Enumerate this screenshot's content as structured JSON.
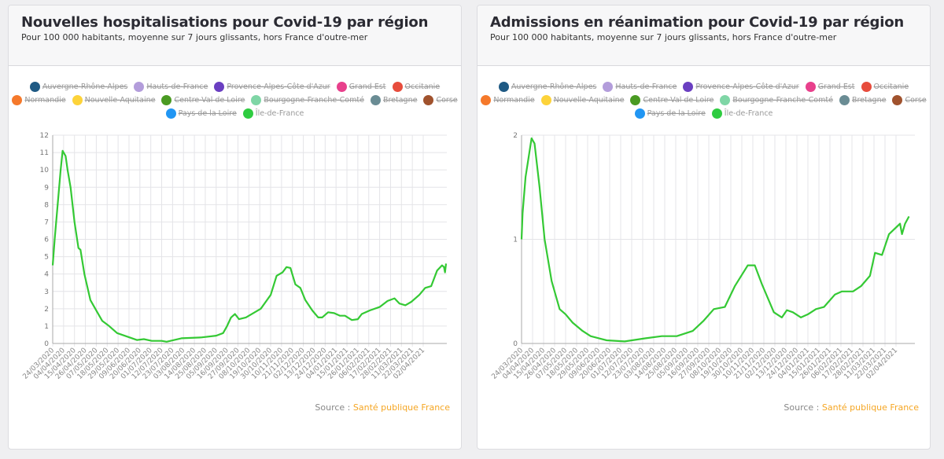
{
  "cards": [
    {
      "title": "Nouvelles hospitalisations pour Covid-19 par région",
      "subtitle": "Pour 100 000 habitants, moyenne sur 7 jours glissants, hors France d'outre-mer"
    },
    {
      "title": "Admissions en réanimation pour Covid-19 par région",
      "subtitle": "Pour 100 000 habitants, moyenne sur 7 jours glissants, hors France d'outre-mer"
    }
  ],
  "legend": [
    {
      "label": "Auvergne-Rhône-Alpes",
      "color": "#1f5a84",
      "hidden": true
    },
    {
      "label": "Hauts-de-France",
      "color": "#b39ddb",
      "hidden": true
    },
    {
      "label": "Provence-Alpes-Côte d'Azur",
      "color": "#6a3fc1",
      "hidden": true
    },
    {
      "label": "Grand Est",
      "color": "#e8408c",
      "hidden": true
    },
    {
      "label": "Occitanie",
      "color": "#e74c3c",
      "hidden": true
    },
    {
      "label": "Normandie",
      "color": "#f5792b",
      "hidden": true
    },
    {
      "label": "Nouvelle-Aquitaine",
      "color": "#fdd33a",
      "hidden": true
    },
    {
      "label": "Centre-Val de Loire",
      "color": "#4a9a22",
      "hidden": true
    },
    {
      "label": "Bourgogne-Franche-Comté",
      "color": "#7fd6a6",
      "hidden": true
    },
    {
      "label": "Bretagne",
      "color": "#6a8c94",
      "hidden": true
    },
    {
      "label": "Corse",
      "color": "#a0522d",
      "hidden": true
    },
    {
      "label": "Pays de la Loire",
      "color": "#2196f3",
      "hidden": true
    },
    {
      "label": "Île-de-France",
      "color": "#2ecc40",
      "hidden": false
    }
  ],
  "source": {
    "prefix": "Source : ",
    "link": "Santé publique France",
    "link_color": "#f5a623"
  },
  "chart_data": [
    {
      "type": "line",
      "grid": true,
      "ylim": [
        0,
        12
      ],
      "y_ticks": [
        "0",
        "1",
        "2",
        "3",
        "4",
        "5",
        "6",
        "7",
        "8",
        "9",
        "10",
        "11",
        "12"
      ],
      "x_ticks": [
        "24/03/2020",
        "04/04/2020",
        "15/04/2020",
        "26/04/2020",
        "07/05/2020",
        "18/05/2020",
        "29/05/2020",
        "09/06/2020",
        "20/06/2020",
        "01/07/2020",
        "12/07/2020",
        "23/07/2020",
        "03/08/2020",
        "14/08/2020",
        "25/08/2020",
        "05/09/2020",
        "16/09/2020",
        "27/09/2020",
        "08/10/2020",
        "19/10/2020",
        "30/10/2020",
        "10/11/2020",
        "21/11/2020",
        "02/12/2020",
        "13/12/2020",
        "24/12/2020",
        "04/01/2021",
        "15/01/2021",
        "26/01/2021",
        "06/02/2021",
        "17/02/2021",
        "28/02/2021",
        "11/03/2021",
        "22/03/2021",
        "02/04/2021"
      ],
      "series": [
        {
          "name": "Île-de-France",
          "color": "#34c934",
          "points": [
            [
              "24/03/2020",
              4.5
            ],
            [
              "26/03/2020",
              6
            ],
            [
              "29/03/2020",
              8
            ],
            [
              "01/04/2020",
              10
            ],
            [
              "03/04/2020",
              11.1
            ],
            [
              "06/04/2020",
              10.8
            ],
            [
              "08/04/2020",
              10
            ],
            [
              "11/04/2020",
              9
            ],
            [
              "15/04/2020",
              7
            ],
            [
              "19/04/2020",
              5.5
            ],
            [
              "21/04/2020",
              5.4
            ],
            [
              "25/04/2020",
              4
            ],
            [
              "01/05/2020",
              2.5
            ],
            [
              "08/05/2020",
              1.8
            ],
            [
              "13/05/2020",
              1.3
            ],
            [
              "20/05/2020",
              1.0
            ],
            [
              "28/05/2020",
              0.6
            ],
            [
              "07/06/2020",
              0.4
            ],
            [
              "17/06/2020",
              0.2
            ],
            [
              "24/06/2020",
              0.25
            ],
            [
              "02/07/2020",
              0.15
            ],
            [
              "12/07/2020",
              0.15
            ],
            [
              "17/07/2020",
              0.1
            ],
            [
              "01/08/2020",
              0.3
            ],
            [
              "21/08/2020",
              0.35
            ],
            [
              "05/09/2020",
              0.45
            ],
            [
              "12/09/2020",
              0.6
            ],
            [
              "16/09/2020",
              1.0
            ],
            [
              "20/09/2020",
              1.5
            ],
            [
              "24/09/2020",
              1.7
            ],
            [
              "28/09/2020",
              1.4
            ],
            [
              "05/10/2020",
              1.5
            ],
            [
              "20/10/2020",
              2.0
            ],
            [
              "30/10/2020",
              2.8
            ],
            [
              "05/11/2020",
              3.9
            ],
            [
              "11/11/2020",
              4.1
            ],
            [
              "15/11/2020",
              4.4
            ],
            [
              "19/11/2020",
              4.35
            ],
            [
              "24/11/2020",
              3.4
            ],
            [
              "29/11/2020",
              3.2
            ],
            [
              "04/12/2020",
              2.5
            ],
            [
              "11/12/2020",
              1.9
            ],
            [
              "17/12/2020",
              1.5
            ],
            [
              "21/12/2020",
              1.5
            ],
            [
              "27/12/2020",
              1.8
            ],
            [
              "02/01/2021",
              1.75
            ],
            [
              "08/01/2021",
              1.6
            ],
            [
              "13/01/2021",
              1.6
            ],
            [
              "20/01/2021",
              1.35
            ],
            [
              "26/01/2021",
              1.4
            ],
            [
              "30/01/2021",
              1.7
            ],
            [
              "07/02/2021",
              1.9
            ],
            [
              "17/02/2021",
              2.1
            ],
            [
              "25/02/2021",
              2.45
            ],
            [
              "04/03/2021",
              2.6
            ],
            [
              "09/03/2021",
              2.3
            ],
            [
              "15/03/2021",
              2.2
            ],
            [
              "21/03/2021",
              2.4
            ],
            [
              "29/03/2021",
              2.8
            ],
            [
              "04/04/2021",
              3.2
            ],
            [
              "10/04/2021",
              3.3
            ],
            [
              "16/04/2021",
              4.2
            ],
            [
              "21/04/2021",
              4.5
            ],
            [
              "23/04/2021",
              4.4
            ],
            [
              "24/04/2021",
              4.1
            ],
            [
              "25/04/2021",
              4.6
            ]
          ]
        }
      ]
    },
    {
      "type": "line",
      "grid": true,
      "ylim": [
        0,
        2
      ],
      "y_ticks": [
        "0",
        "1",
        "2"
      ],
      "x_ticks": [
        "24/03/2020",
        "04/04/2020",
        "15/04/2020",
        "26/04/2020",
        "07/05/2020",
        "18/05/2020",
        "29/05/2020",
        "09/06/2020",
        "20/06/2020",
        "01/07/2020",
        "12/07/2020",
        "23/07/2020",
        "03/08/2020",
        "14/08/2020",
        "25/08/2020",
        "05/09/2020",
        "16/09/2020",
        "27/09/2020",
        "08/10/2020",
        "19/10/2020",
        "30/10/2020",
        "10/11/2020",
        "21/11/2020",
        "02/12/2020",
        "13/12/2020",
        "24/12/2020",
        "04/01/2021",
        "15/01/2021",
        "26/01/2021",
        "06/02/2021",
        "17/02/2021",
        "28/02/2021",
        "11/03/2021",
        "22/03/2021",
        "02/04/2021"
      ],
      "series": [
        {
          "name": "Île-de-France",
          "color": "#34c934",
          "points": [
            [
              "24/03/2020",
              1.0
            ],
            [
              "25/03/2020",
              1.25
            ],
            [
              "28/03/2020",
              1.6
            ],
            [
              "30/03/2020",
              1.72
            ],
            [
              "03/04/2020",
              1.97
            ],
            [
              "06/04/2020",
              1.92
            ],
            [
              "11/04/2020",
              1.5
            ],
            [
              "16/04/2020",
              1.0
            ],
            [
              "23/04/2020",
              0.6
            ],
            [
              "01/05/2020",
              0.33
            ],
            [
              "07/05/2020",
              0.28
            ],
            [
              "14/05/2020",
              0.2
            ],
            [
              "24/05/2020",
              0.12
            ],
            [
              "01/06/2020",
              0.07
            ],
            [
              "17/06/2020",
              0.03
            ],
            [
              "05/07/2020",
              0.02
            ],
            [
              "26/07/2020",
              0.05
            ],
            [
              "11/08/2020",
              0.07
            ],
            [
              "26/08/2020",
              0.07
            ],
            [
              "11/09/2020",
              0.12
            ],
            [
              "22/09/2020",
              0.22
            ],
            [
              "02/10/2020",
              0.33
            ],
            [
              "13/10/2020",
              0.35
            ],
            [
              "23/10/2020",
              0.55
            ],
            [
              "05/11/2020",
              0.75
            ],
            [
              "12/11/2020",
              0.75
            ],
            [
              "19/11/2020",
              0.57
            ],
            [
              "01/12/2020",
              0.3
            ],
            [
              "09/12/2020",
              0.25
            ],
            [
              "14/12/2020",
              0.32
            ],
            [
              "20/12/2020",
              0.3
            ],
            [
              "28/12/2020",
              0.25
            ],
            [
              "04/01/2021",
              0.28
            ],
            [
              "12/01/2021",
              0.33
            ],
            [
              "20/01/2021",
              0.35
            ],
            [
              "31/01/2021",
              0.47
            ],
            [
              "07/02/2021",
              0.5
            ],
            [
              "18/02/2021",
              0.5
            ],
            [
              "26/02/2021",
              0.55
            ],
            [
              "07/03/2021",
              0.65
            ],
            [
              "12/03/2021",
              0.87
            ],
            [
              "19/03/2021",
              0.85
            ],
            [
              "26/03/2021",
              1.05
            ],
            [
              "06/04/2021",
              1.15
            ],
            [
              "08/04/2021",
              1.05
            ],
            [
              "11/04/2021",
              1.15
            ],
            [
              "15/04/2021",
              1.22
            ]
          ]
        }
      ]
    }
  ]
}
